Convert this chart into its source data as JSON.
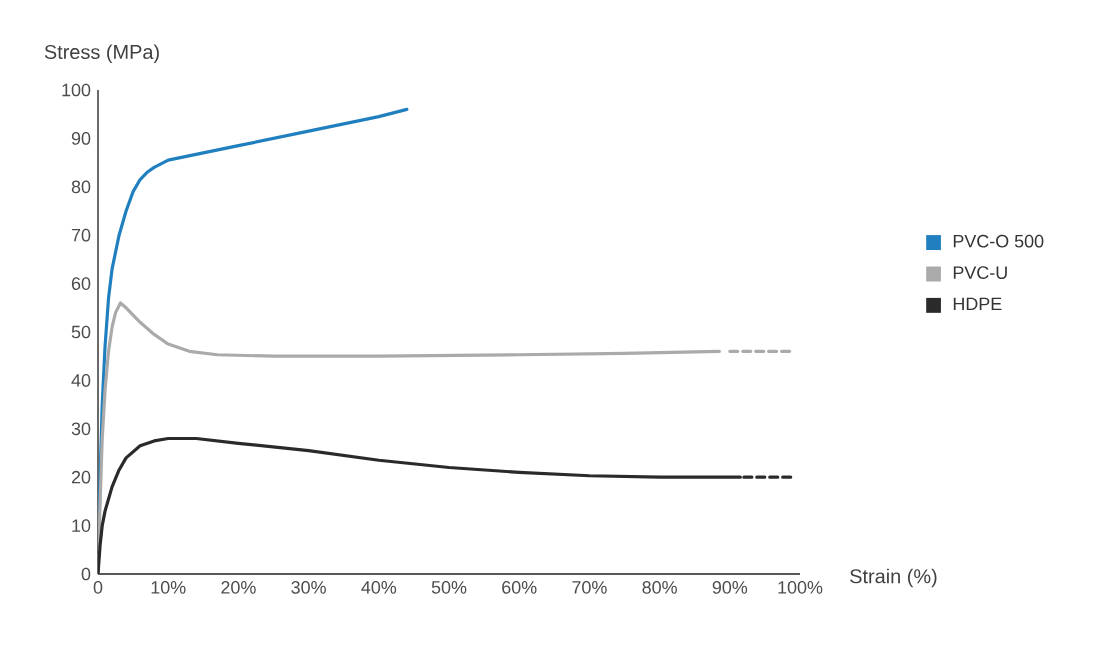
{
  "chart_data": {
    "type": "line",
    "xlabel": "Strain (%)",
    "ylabel": "Stress (MPa)",
    "xlim": [
      0,
      100
    ],
    "ylim": [
      0,
      100
    ],
    "xticks": [
      0,
      {
        "value": 10,
        "label": "10%"
      },
      {
        "value": 20,
        "label": "20%"
      },
      {
        "value": 30,
        "label": "30%"
      },
      {
        "value": 40,
        "label": "40%"
      },
      {
        "value": 50,
        "label": "50%"
      },
      {
        "value": 60,
        "label": "60%"
      },
      {
        "value": 70,
        "label": "70%"
      },
      {
        "value": 80,
        "label": "80%"
      },
      {
        "value": 90,
        "label": "90%"
      },
      {
        "value": 100,
        "label": "100%"
      }
    ],
    "yticks": [
      0,
      10,
      20,
      30,
      40,
      50,
      60,
      70,
      80,
      90,
      100
    ],
    "grid": false,
    "legend": "right",
    "marker": "none",
    "series": [
      {
        "name": "PVC-O 500",
        "color": "#1f7fbf",
        "line_style": "solid",
        "x": [
          0,
          0.3,
          0.6,
          1,
          1.5,
          2,
          3,
          4,
          5,
          6,
          7,
          8,
          10,
          15,
          20,
          30,
          40,
          44
        ],
        "values": [
          0,
          20,
          35,
          47,
          57,
          63,
          70,
          75,
          79,
          81.5,
          83,
          84,
          85.5,
          87,
          88.5,
          91.5,
          94.5,
          96
        ]
      },
      {
        "name": "PVC-U",
        "color": "#aaaaaa",
        "line_style": "solid",
        "x": [
          0,
          0.3,
          0.6,
          1,
          1.5,
          2,
          2.5,
          3.2,
          4,
          6,
          8,
          10,
          13,
          17,
          25,
          40,
          60,
          75,
          88.5
        ],
        "values": [
          0,
          15,
          28,
          38,
          46,
          51,
          54,
          56,
          55,
          52,
          49.5,
          47.5,
          46,
          45.3,
          45,
          45,
          45.3,
          45.6,
          46
        ]
      },
      {
        "name": "HDPE",
        "color": "#2a2a2a",
        "line_style": "solid",
        "x": [
          0,
          0.3,
          0.6,
          1,
          2,
          3,
          4,
          6,
          8,
          10,
          14,
          20,
          30,
          40,
          50,
          60,
          70,
          80,
          91.5
        ],
        "values": [
          0,
          6,
          10,
          13,
          18,
          21.5,
          24,
          26.5,
          27.5,
          28,
          28,
          27,
          25.5,
          23.5,
          22,
          21,
          20.3,
          20,
          20
        ]
      },
      {
        "color": "#aaaaaa",
        "line_style": "dashed",
        "x": [
          90,
          99
        ],
        "values": [
          46,
          46
        ]
      },
      {
        "color": "#2a2a2a",
        "line_style": "dashed",
        "x": [
          92,
          99
        ],
        "values": [
          20,
          20
        ]
      }
    ]
  }
}
